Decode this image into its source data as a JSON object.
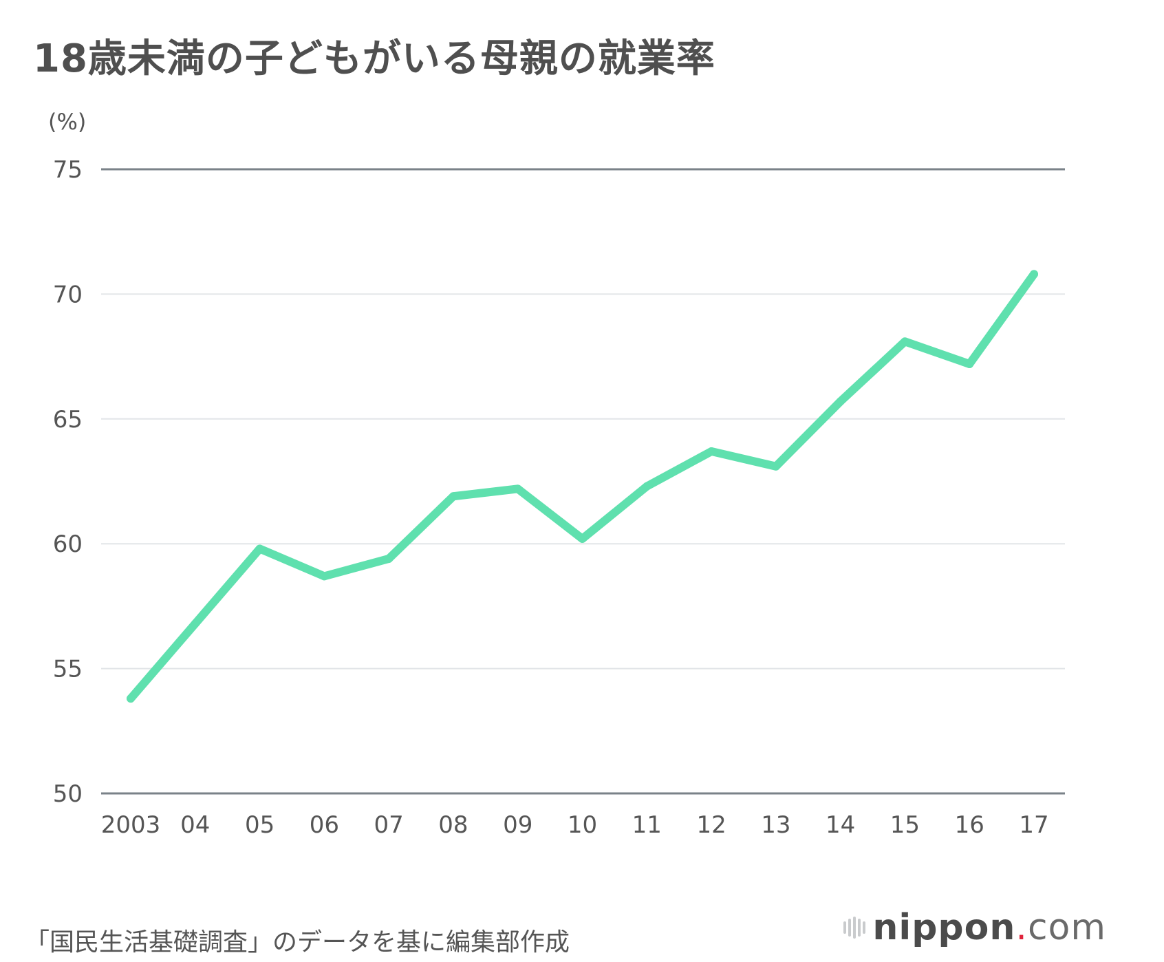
{
  "title": "18歳未満の子どもがいる母親の就業率",
  "source": "「国民生活基礎調査」のデータを基に編集部作成",
  "logo": {
    "name": "nippon",
    "dot": ".",
    "suffix": "com"
  },
  "chart_data": {
    "type": "line",
    "title": "18歳未満の子どもがいる母親の就業率",
    "ylabel": "(%)",
    "xlabel": "",
    "ylim": [
      50,
      75
    ],
    "yticks": [
      50,
      55,
      60,
      65,
      70,
      75
    ],
    "categories": [
      "2003",
      "04",
      "05",
      "06",
      "07",
      "08",
      "09",
      "10",
      "11",
      "12",
      "13",
      "14",
      "15",
      "16",
      "17"
    ],
    "series": [
      {
        "values": [
          53.8,
          56.8,
          59.8,
          58.7,
          59.4,
          61.9,
          62.2,
          60.2,
          62.3,
          63.7,
          63.1,
          65.7,
          68.1,
          67.2,
          70.8
        ]
      }
    ],
    "line_color": "#5fe0ae",
    "grid": true,
    "grid_color": "#e2e5e8",
    "axis_color": "#7a8288"
  }
}
